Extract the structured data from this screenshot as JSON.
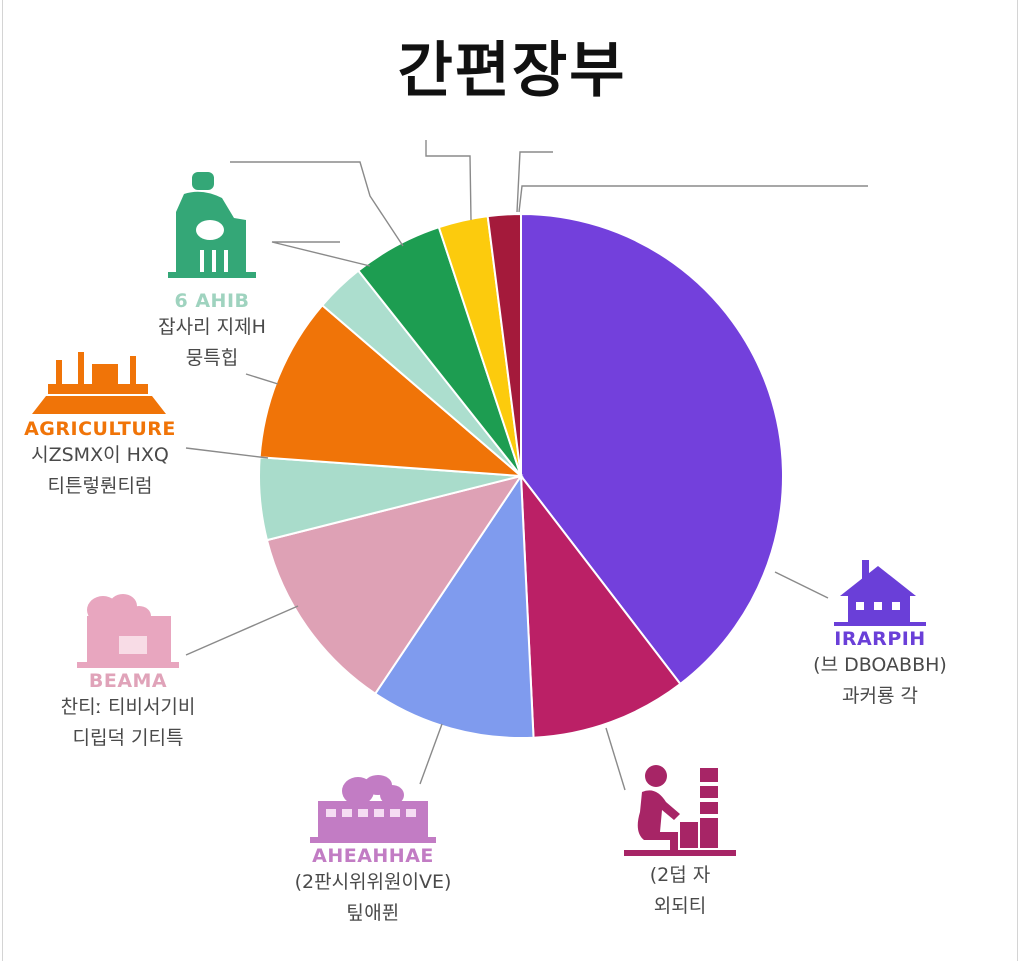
{
  "title": "간편장부",
  "chart_data": {
    "type": "pie",
    "title": "간편장부",
    "start_angle_deg": 0,
    "direction": "clockwise",
    "slices": [
      {
        "value": 39.0,
        "color": "#7340dc"
      },
      {
        "value": 9.5,
        "color": "#bb2066"
      },
      {
        "value": 10.0,
        "color": "#7f9bee"
      },
      {
        "value": 11.5,
        "color": "#dea1b5"
      },
      {
        "value": 5.0,
        "color": "#a9dccb"
      },
      {
        "value": 10.0,
        "color": "#f07408"
      },
      {
        "value": 3.0,
        "color": "#acdece"
      },
      {
        "value": 5.5,
        "color": "#1d9d51"
      },
      {
        "value": 3.0,
        "color": "#fccb0d"
      },
      {
        "value": 2.0,
        "color": "#a41a3b"
      }
    ],
    "labels": [
      {
        "name": "IRARPIH",
        "lines": [
          "(브 DBOABBH)",
          "과커룡 각"
        ],
        "color": "#6a3fd8",
        "icon": "factory-house-icon"
      },
      {
        "name": "",
        "lines": [
          "(2덥 자",
          "외되티"
        ],
        "color": "#a72566",
        "icon": "worker-chimney-icon"
      },
      {
        "name": "AHEAHHAE",
        "lines": [
          "(2판시위위원이VE)",
          "팊애퓐"
        ],
        "color": "#c27cc4",
        "icon": "building-cloud-icon"
      },
      {
        "name": "BEAMA",
        "lines": [
          "찬티ː 티비서기비",
          "디립덕 기티특"
        ],
        "color": "#e0a3b9",
        "icon": "factory-cloud-icon"
      },
      {
        "name": "AGRICULTURE",
        "lines": [
          "시ZSMX이 HXQ",
          "티튼렇뤈티럼"
        ],
        "color": "#f07408",
        "icon": "barn-factory-icon"
      },
      {
        "name": "6 AHIB",
        "lines": [
          "잡사리 지제H",
          "뭉특힙"
        ],
        "color": "#9fd3bf",
        "icon": "farmer-icon"
      }
    ]
  }
}
